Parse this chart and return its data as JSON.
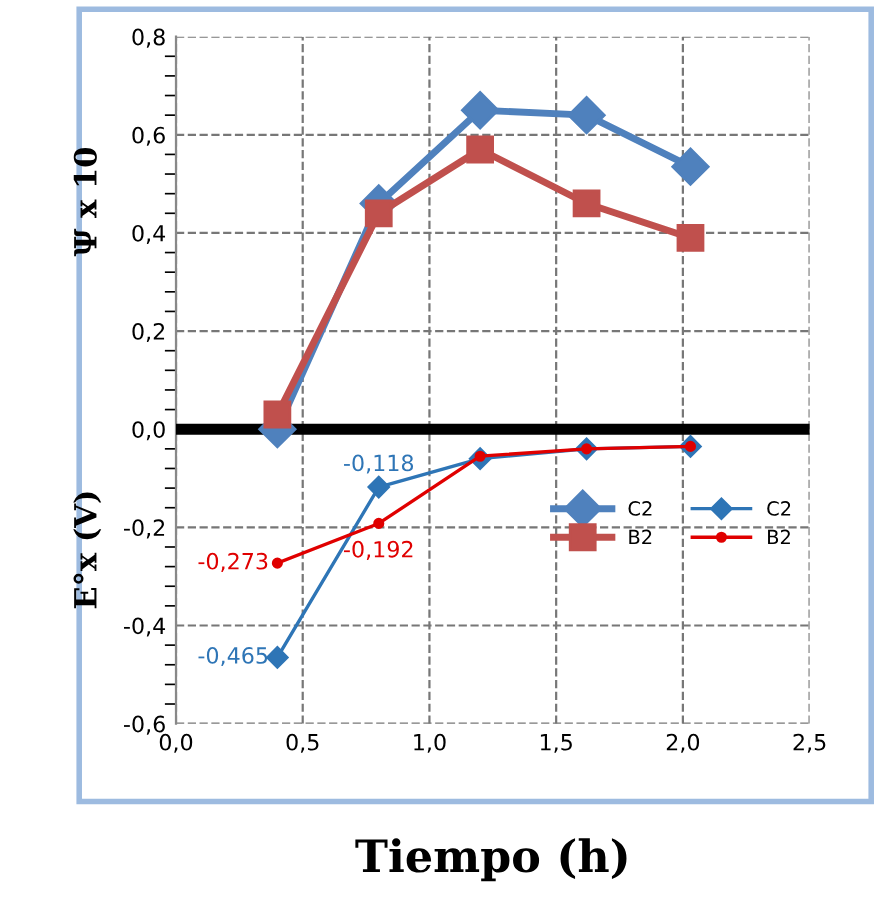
{
  "chart_data": {
    "type": "line",
    "xlabel": "Tiempo (h)",
    "ylabel": "Ψ x 10",
    "y2label": "E°x (V)",
    "xlim": [
      0,
      2.5
    ],
    "xticks": [
      {
        "value": 0,
        "label": "0,0"
      },
      {
        "value": 0.5,
        "label": "0,5"
      },
      {
        "value": 1.0,
        "label": "1,0"
      },
      {
        "value": 1.5,
        "label": "1,5"
      },
      {
        "value": 2.0,
        "label": "2,0"
      },
      {
        "value": 2.5,
        "label": "2,5"
      }
    ],
    "ylim": [
      -0.6,
      0.8
    ],
    "yticks": [
      {
        "value": -0.6,
        "label": "-0,6"
      },
      {
        "value": -0.4,
        "label": "-0,4"
      },
      {
        "value": -0.2,
        "label": "-0,2"
      },
      {
        "value": 0,
        "label": "0,0"
      },
      {
        "value": 0.2,
        "label": "0,2"
      },
      {
        "value": 0.4,
        "label": "0,4"
      },
      {
        "value": 0.6,
        "label": "0,6"
      },
      {
        "value": 0.8,
        "label": "0,8"
      }
    ],
    "grid": true,
    "legend": "right",
    "line_style": "solid",
    "ref_lines": [
      {
        "axis": "y",
        "value": 0,
        "color": "#000000"
      }
    ],
    "series": [
      {
        "name": "C2",
        "color": "#4f81bd",
        "marker": "diamond",
        "x": [
          0.4,
          0.8,
          1.2,
          1.62,
          2.03
        ],
        "values": [
          0.0,
          0.46,
          0.65,
          0.64,
          0.535
        ]
      },
      {
        "name": "B2",
        "color": "#c0504d",
        "marker": "square",
        "x": [
          0.4,
          0.8,
          1.2,
          1.62,
          2.03
        ],
        "values": [
          0.03,
          0.44,
          0.57,
          0.46,
          0.39
        ]
      },
      {
        "name": "C2",
        "color": "#2e75b6",
        "marker": "diamond",
        "x": [
          0.4,
          0.8,
          1.2,
          1.62,
          2.03
        ],
        "values": [
          -0.465,
          -0.118,
          -0.06,
          -0.04,
          -0.035
        ],
        "value_labels": [
          "-0,465",
          "-0,118",
          null,
          null,
          null
        ]
      },
      {
        "name": "B2",
        "color": "#e00000",
        "marker": "circle",
        "x": [
          0.4,
          0.8,
          1.2,
          1.62,
          2.03
        ],
        "values": [
          -0.273,
          -0.192,
          -0.055,
          -0.04,
          -0.035
        ],
        "value_labels": [
          "-0,273",
          "-0,192",
          null,
          null,
          null
        ]
      }
    ]
  }
}
